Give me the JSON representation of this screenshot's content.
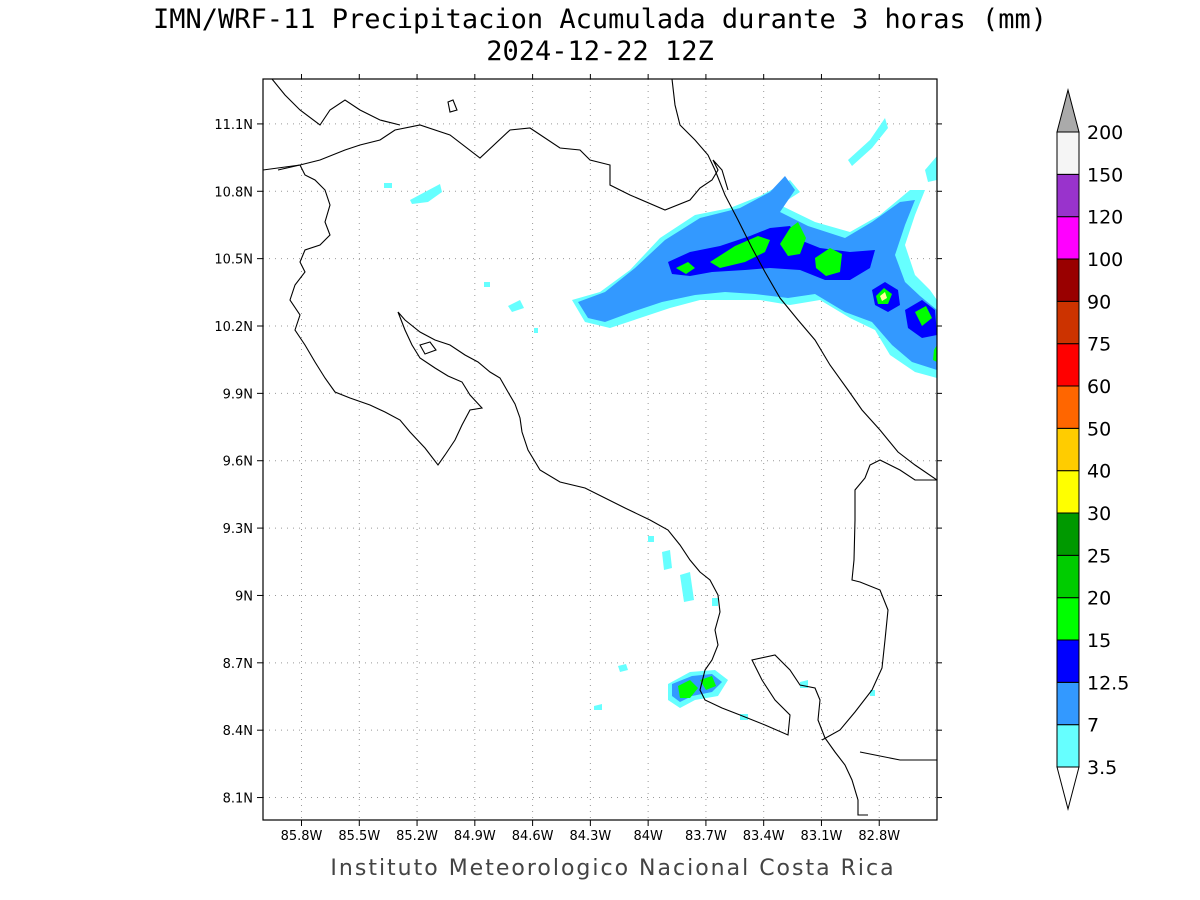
{
  "title": "IMN/WRF-11 Precipitacion Acumulada durante 3 horas (mm)",
  "subtitle": "2024-12-22 12Z",
  "footer": "Instituto Meteorologico Nacional Costa Rica",
  "map": {
    "lon_range": [
      -86.0,
      -82.5
    ],
    "lat_range": [
      8.0,
      11.3
    ],
    "lon_ticks": [
      "85.8W",
      "85.5W",
      "85.2W",
      "84.9W",
      "84.6W",
      "84.3W",
      "84W",
      "83.7W",
      "83.4W",
      "83.1W",
      "82.8W"
    ],
    "lat_ticks": [
      "11.1N",
      "10.8N",
      "10.5N",
      "10.2N",
      "9.9N",
      "9.6N",
      "9.3N",
      "9N",
      "8.7N",
      "8.4N",
      "8.1N"
    ],
    "grid": "dotted"
  },
  "colorbar": {
    "labels": [
      "3.5",
      "7",
      "12.5",
      "15",
      "20",
      "25",
      "30",
      "40",
      "50",
      "60",
      "75",
      "90",
      "100",
      "120",
      "150",
      "200"
    ],
    "colors": [
      "#ffffff",
      "#66ffff",
      "#3399ff",
      "#0000ff",
      "#00ff00",
      "#00cc00",
      "#009900",
      "#ffff00",
      "#ffcc00",
      "#ff6600",
      "#ff0000",
      "#cc3300",
      "#990000",
      "#ff00ff",
      "#9933cc",
      "#f5f5f5",
      "#aaaaaa"
    ]
  }
}
